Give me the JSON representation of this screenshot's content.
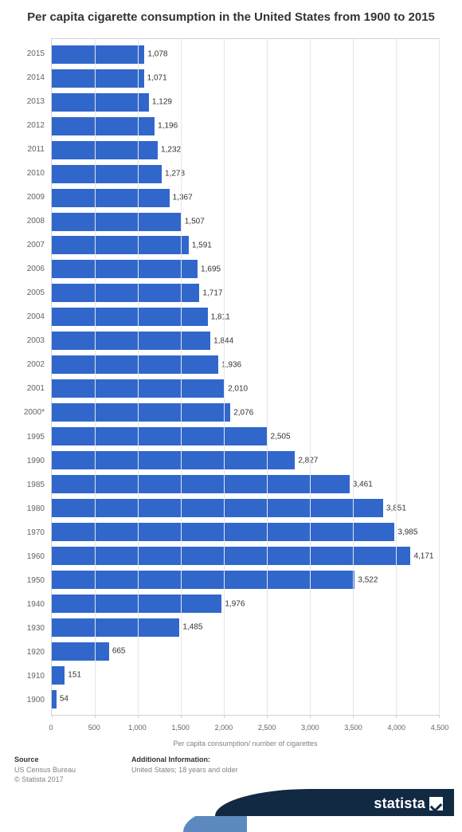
{
  "chart": {
    "type": "bar-horizontal",
    "title": "Per capita cigarette consumption in the United States from 1900 to 2015",
    "x_axis_title": "Per capita consumption/ number of cigarettes",
    "xlim": [
      0,
      4500
    ],
    "xtick_step": 500,
    "xticks": [
      0,
      500,
      1000,
      1500,
      2000,
      2500,
      3000,
      3500,
      4000,
      4500
    ],
    "xtick_labels": [
      "0",
      "500",
      "1,000",
      "1,500",
      "2,000",
      "2,500",
      "3,000",
      "3,500",
      "4,000",
      "4,500"
    ],
    "categories": [
      "2015",
      "2014",
      "2013",
      "2012",
      "2011",
      "2010",
      "2009",
      "2008",
      "2007",
      "2006",
      "2005",
      "2004",
      "2003",
      "2002",
      "2001",
      "2000*",
      "1995",
      "1990",
      "1985",
      "1980",
      "1970",
      "1960",
      "1950",
      "1940",
      "1930",
      "1920",
      "1910",
      "1900"
    ],
    "values": [
      1078,
      1071,
      1129,
      1196,
      1232,
      1278,
      1367,
      1507,
      1591,
      1695,
      1717,
      1811,
      1844,
      1936,
      2010,
      2076,
      2505,
      2827,
      3461,
      3851,
      3985,
      4171,
      3522,
      1976,
      1485,
      665,
      151,
      54
    ],
    "value_labels": [
      "1,078",
      "1,071",
      "1,129",
      "1,196",
      "1,232",
      "1,278",
      "1,367",
      "1,507",
      "1,591",
      "1,695",
      "1,717",
      "1,811",
      "1,844",
      "1,936",
      "2,010",
      "2,076",
      "2,505",
      "2,827",
      "3,461",
      "3,851",
      "3,985",
      "4,171",
      "3,522",
      "1,976",
      "1,485",
      "665",
      "151",
      "54"
    ],
    "bar_color": "#3167cb",
    "background_color": "#ffffff",
    "grid_color": "#e3e6ea",
    "border_color": "#cfd3d8",
    "label_color": "#606367",
    "value_label_color": "#333333",
    "title_fontsize": 15,
    "axis_fontsize": 9,
    "value_fontsize": 10,
    "category_fontsize": 10
  },
  "footer": {
    "source_head": "Source",
    "source_line1": "US Census Bureau",
    "source_line2": "© Statista 2017",
    "info_head": "Additional Information:",
    "info_line1": "United States; 18 years and older"
  },
  "branding": {
    "logo_text": "statista",
    "swoosh_color_dark": "#122942",
    "swoosh_color_light": "#5b89c0"
  }
}
